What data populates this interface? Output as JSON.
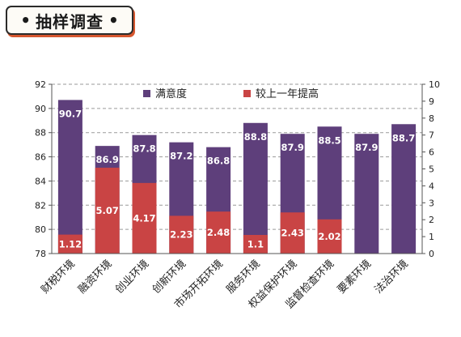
{
  "header": {
    "title": "抽样调查",
    "dot": "•"
  },
  "chart_data": {
    "type": "bar",
    "title": "",
    "categories": [
      "财税环境",
      "融资环境",
      "创业环境",
      "创新环境",
      "市场开拓环境",
      "服务环境",
      "权益保护环境",
      "监督检查环境",
      "要素环境",
      "法治环境"
    ],
    "series": [
      {
        "name": "满意度",
        "axis": "left",
        "color": "#5e3f7b",
        "values": [
          90.7,
          86.9,
          87.8,
          87.2,
          86.8,
          88.8,
          87.9,
          88.5,
          87.9,
          88.7
        ],
        "labels": [
          "90.7",
          "86.9",
          "87.8",
          "87.2",
          "86.8",
          "88.8",
          "87.9",
          "88.5",
          "87.9",
          "88.7"
        ]
      },
      {
        "name": "较上一年提高",
        "axis": "right",
        "color": "#c94444",
        "values": [
          1.12,
          5.07,
          4.17,
          2.23,
          2.48,
          1.1,
          2.43,
          2.02,
          null,
          null
        ],
        "labels": [
          "1.12",
          "5.07",
          "4.17",
          "2.23",
          "2.48",
          "1.1",
          "2.43",
          "2.02",
          "",
          ""
        ]
      }
    ],
    "y_left": {
      "lim": [
        78,
        92
      ],
      "ticks": [
        "78",
        "80",
        "82",
        "84",
        "86",
        "88",
        "90",
        "92"
      ]
    },
    "y_right": {
      "lim": [
        0,
        10
      ],
      "ticks": [
        "0",
        "1",
        "2",
        "3",
        "4",
        "5",
        "6",
        "7",
        "8",
        "9",
        "10"
      ]
    },
    "grid": "horizontal dashed",
    "legend_position": "top"
  }
}
